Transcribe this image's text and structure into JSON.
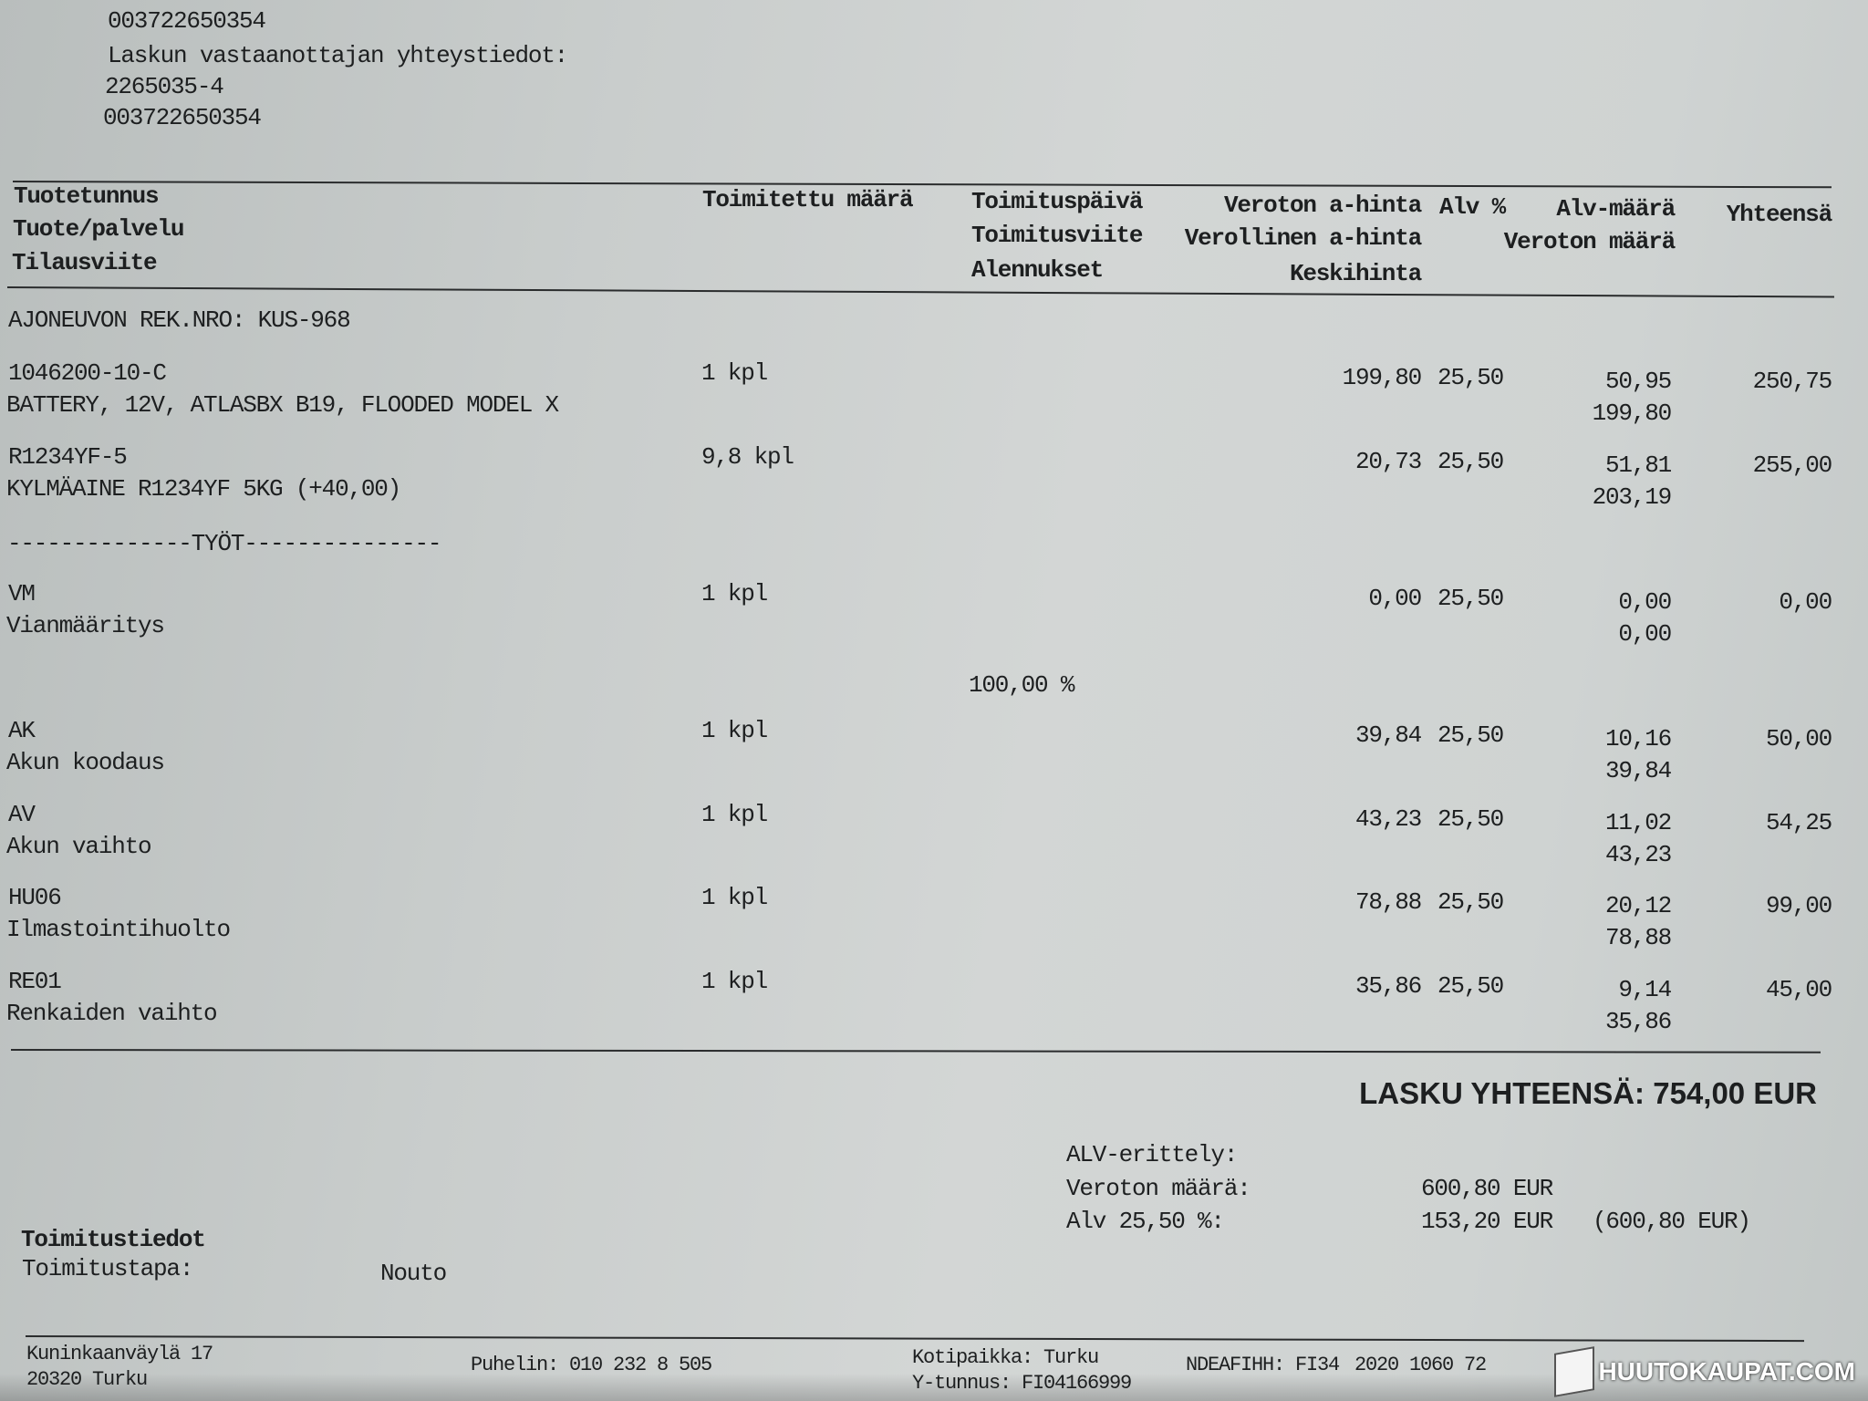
{
  "recipient": {
    "phone_top": "003722650354",
    "contact_label": "Laskun vastaanottajan yhteystiedot:",
    "business_id": "2265035-4",
    "phone": "003722650354"
  },
  "columns": {
    "c1": [
      "Tuotetunnus",
      "Tuote/palvelu",
      "Tilausviite"
    ],
    "c2": "Toimitettu määrä",
    "c3": [
      "Toimituspäivä",
      "Toimitusviite",
      "Alennukset"
    ],
    "c4": [
      "Veroton a-hinta",
      "Verollinen a-hinta",
      "Keskihinta"
    ],
    "c5": "Alv %",
    "c6": [
      "Alv-määrä",
      "Veroton määrä"
    ],
    "c7": "Yhteensä"
  },
  "vehicle": "AJONEUVON REK.NRO: KUS-968",
  "section_works": "--------------TYÖT---------------",
  "discount": "100,00 %",
  "items": [
    {
      "code": "1046200-10-C",
      "name": "BATTERY, 12V, ATLASBX B19, FLOODED MODEL X",
      "qty": "1 kpl",
      "unit_price": "199,80",
      "vat_pct": "25,50",
      "vat_amount": "50,95",
      "net_amount": "199,80",
      "total": "250,75"
    },
    {
      "code": "R1234YF-5",
      "name": "KYLMÄAINE R1234YF 5KG (+40,00)",
      "qty": "9,8 kpl",
      "unit_price": "20,73",
      "vat_pct": "25,50",
      "vat_amount": "51,81",
      "net_amount": "203,19",
      "total": "255,00"
    },
    {
      "code": "VM",
      "name": "Vianmääritys",
      "qty": "1 kpl",
      "unit_price": "0,00",
      "vat_pct": "25,50",
      "vat_amount": "0,00",
      "net_amount": "0,00",
      "total": "0,00"
    },
    {
      "code": "AK",
      "name": "Akun koodaus",
      "qty": "1 kpl",
      "unit_price": "39,84",
      "vat_pct": "25,50",
      "vat_amount": "10,16",
      "net_amount": "39,84",
      "total": "50,00"
    },
    {
      "code": "AV",
      "name": "Akun vaihto",
      "qty": "1 kpl",
      "unit_price": "43,23",
      "vat_pct": "25,50",
      "vat_amount": "11,02",
      "net_amount": "43,23",
      "total": "54,25"
    },
    {
      "code": "HU06",
      "name": "Ilmastointihuolto",
      "qty": "1 kpl",
      "unit_price": "78,88",
      "vat_pct": "25,50",
      "vat_amount": "20,12",
      "net_amount": "78,88",
      "total": "99,00"
    },
    {
      "code": "RE01",
      "name": "Renkaiden vaihto",
      "qty": "1 kpl",
      "unit_price": "35,86",
      "vat_pct": "25,50",
      "vat_amount": "9,14",
      "net_amount": "35,86",
      "total": "45,00"
    }
  ],
  "invoice_total": "LASKU YHTEENSÄ: 754,00 EUR",
  "vat_breakdown": {
    "title": "ALV-erittely:",
    "net_label": "Veroton määrä:",
    "net_value": "600,80 EUR",
    "vat_label": "Alv 25,50 %:",
    "vat_value": "153,20 EUR",
    "vat_base": "(600,80 EUR)"
  },
  "delivery": {
    "title": "Toimitustiedot",
    "method_label": "Toimitustapa:",
    "method_value": "Nouto"
  },
  "footer": {
    "address1": "Kuninkaanväylä 17",
    "address2": "20320 Turku",
    "phone": "Puhelin: 010 232 8 505",
    "domicile": "Kotipaikka: Turku",
    "business_id": "Y-tunnus: FI04166999",
    "bank": "NDEAFIHH: FI34",
    "bank_cont": "2020 1060 72"
  },
  "watermark": "HUUTOKAUPAT.COM"
}
